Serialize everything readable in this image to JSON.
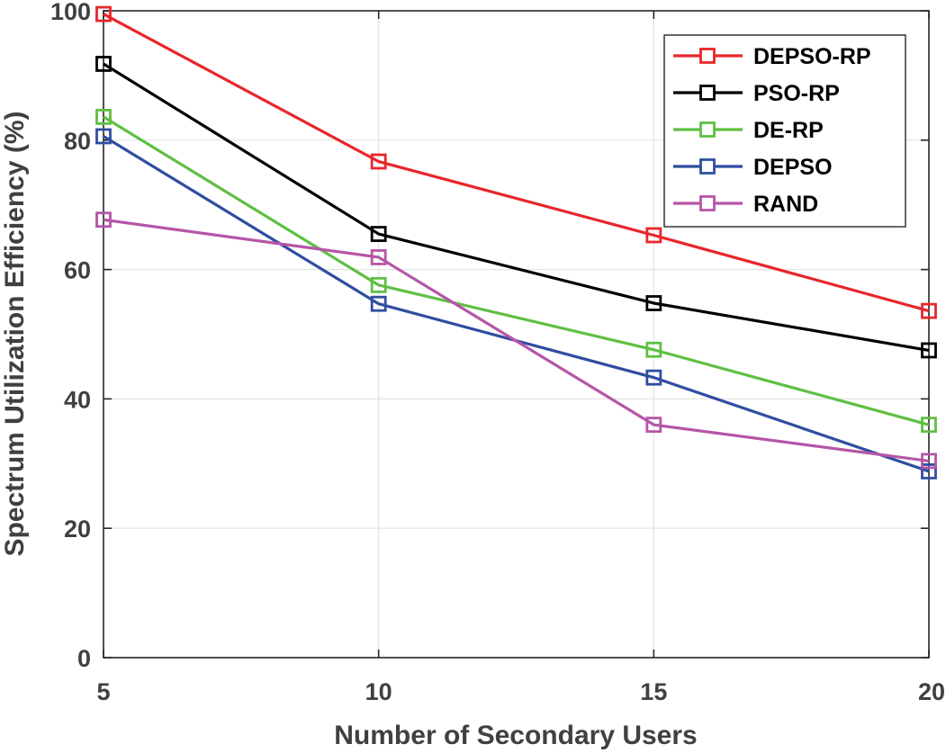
{
  "chart_data": {
    "type": "line",
    "title": "",
    "xlabel": "Number of Secondary Users",
    "ylabel": "Spectrum Utilization Efficiency (%)",
    "xlim": [
      5,
      20
    ],
    "ylim": [
      0,
      100
    ],
    "xticks": [
      5,
      10,
      15,
      20
    ],
    "yticks": [
      0,
      20,
      40,
      60,
      80,
      100
    ],
    "grid": true,
    "legend_position": "top-right",
    "marker": "square",
    "x": [
      5,
      10,
      15,
      20
    ],
    "series": [
      {
        "name": "DEPSO-RP",
        "color": "#e8262b",
        "values": [
          99.5,
          76.7,
          65.3,
          53.6
        ]
      },
      {
        "name": "PSO-RP",
        "color": "#000000",
        "values": [
          91.8,
          65.5,
          54.8,
          47.5
        ]
      },
      {
        "name": "DE-RP",
        "color": "#5fbf43",
        "values": [
          83.6,
          57.6,
          47.6,
          36.0
        ]
      },
      {
        "name": "DEPSO",
        "color": "#2f4ea0",
        "values": [
          80.6,
          54.7,
          43.3,
          28.8
        ]
      },
      {
        "name": "RAND",
        "color": "#b655a8",
        "values": [
          67.7,
          61.9,
          36.0,
          30.4
        ]
      }
    ]
  }
}
